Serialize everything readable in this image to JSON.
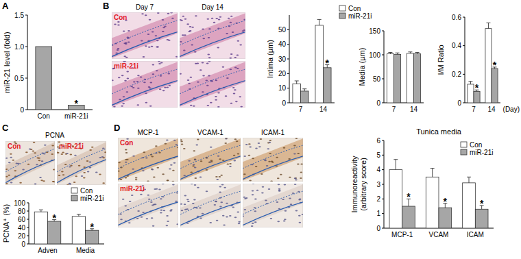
{
  "chart_data": [
    {
      "type": "bar",
      "panel": "A",
      "y_label": "miR-21 level (fold)",
      "categories": [
        "Con",
        "miR-21i"
      ],
      "values": [
        1,
        0.07
      ],
      "color": "#a6a6a6",
      "annotations": [
        null,
        "*"
      ],
      "ylim": [
        0,
        1.5
      ],
      "yticks": [
        0,
        0.5,
        {
          "value": 1,
          "label": "1.0"
        },
        1.5
      ]
    },
    {
      "type": "bar",
      "y_label": "Intima (µm)",
      "categories": [
        "7",
        "14"
      ],
      "series": [
        {
          "name": "Con",
          "color": "#ffffff",
          "values": [
            13,
            53
          ],
          "errors": [
            2,
            4
          ]
        },
        {
          "name": "miR-21i",
          "color": "#a6a6a6",
          "values": [
            8,
            24
          ],
          "errors": [
            1.5,
            2
          ],
          "annotations": [
            null,
            "*"
          ]
        }
      ],
      "ylim": [
        0,
        60
      ],
      "yticks": [
        0,
        10,
        20,
        30,
        40,
        50
      ],
      "legend": "top-right"
    },
    {
      "type": "bar",
      "y_label": "Media (µm)",
      "categories": [
        "7",
        "14"
      ],
      "series": [
        {
          "name": "Con",
          "color": "#ffffff",
          "values": [
            102,
            103
          ],
          "errors": [
            3,
            3
          ]
        },
        {
          "name": "miR-21i",
          "color": "#a6a6a6",
          "values": [
            101,
            102
          ],
          "errors": [
            3,
            3
          ]
        }
      ],
      "ylim": [
        0,
        150
      ],
      "yticks": [
        0,
        50,
        100,
        150
      ]
    },
    {
      "type": "bar",
      "y_label": "I/M Ratio",
      "x_label": "(Day)",
      "categories": [
        "7",
        "14"
      ],
      "series": [
        {
          "name": "Con",
          "color": "#ffffff",
          "values": [
            0.13,
            0.52
          ],
          "errors": [
            0.02,
            0.04
          ]
        },
        {
          "name": "miR-21i",
          "color": "#a6a6a6",
          "values": [
            0.08,
            0.24
          ],
          "errors": [
            0.01,
            0.01
          ],
          "annotations": [
            "*",
            "*"
          ]
        }
      ],
      "ylim": [
        0,
        0.6
      ],
      "yticks": [
        0,
        0.2,
        0.4,
        0.6
      ]
    },
    {
      "type": "bar",
      "y_label": "PCNA⁺ (%)",
      "categories": [
        "Adven",
        "Media"
      ],
      "series": [
        {
          "name": "Con",
          "color": "#ffffff",
          "values": [
            78,
            67
          ],
          "errors": [
            5,
            5
          ]
        },
        {
          "name": "miR-21i",
          "color": "#a6a6a6",
          "values": [
            55,
            33
          ],
          "errors": [
            4,
            4
          ],
          "annotations": [
            "*",
            "*"
          ]
        }
      ],
      "ylim": [
        0,
        100
      ],
      "yticks": [
        0,
        20,
        40,
        60,
        80,
        100
      ],
      "legend": "top-right"
    },
    {
      "type": "bar",
      "title": "Tunica media",
      "y_label": [
        "Immunoreactivity",
        "(arbitrary score)"
      ],
      "categories": [
        "MCP-1",
        "VCAM",
        "ICAM"
      ],
      "series": [
        {
          "name": "Con",
          "color": "#ffffff",
          "values": [
            4.0,
            3.5,
            3.1
          ],
          "errors": [
            0.7,
            0.6,
            0.4
          ]
        },
        {
          "name": "miR-21i",
          "color": "#a6a6a6",
          "values": [
            1.5,
            1.4,
            1.3
          ],
          "errors": [
            0.5,
            0.3,
            0.25
          ],
          "annotations": [
            "*",
            "*",
            "*"
          ]
        }
      ],
      "ylim": [
        0,
        6
      ],
      "yticks": [
        0,
        1,
        2,
        3,
        4,
        5,
        6
      ],
      "legend": "top-right"
    }
  ],
  "images": [
    {
      "panel": "B",
      "columns": [
        "Day 7",
        "Day 14"
      ],
      "rows": [
        "Con",
        "miR-21i"
      ]
    },
    {
      "panel": "C",
      "title": "PCNA",
      "columns": [
        "Con",
        "miR-21i"
      ]
    },
    {
      "panel": "D",
      "columns": [
        "MCP-1",
        "VCAM-1",
        "ICAM-1"
      ],
      "rows": [
        "Con",
        "miR-21i"
      ]
    }
  ]
}
